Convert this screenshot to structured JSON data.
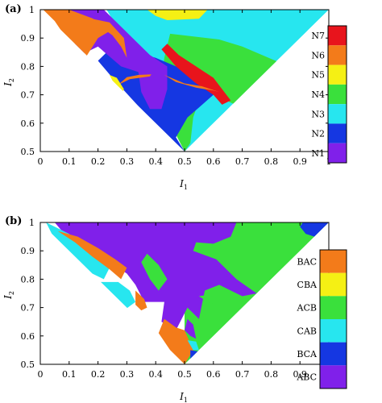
{
  "chart_data": [
    {
      "type": "heatmap",
      "panel_label": "(a)",
      "xlabel": "I",
      "xlabel_sub": "1",
      "ylabel": "I",
      "ylabel_sub": "2",
      "xlim": [
        0,
        1
      ],
      "ylim": [
        0.5,
        1
      ],
      "xticks": [
        0,
        0.1,
        0.2,
        0.3,
        0.4,
        0.5,
        0.6,
        0.7,
        0.8,
        0.9,
        1
      ],
      "yticks": [
        0.5,
        0.6,
        0.7,
        0.8,
        0.9,
        1
      ],
      "legend_position": "right",
      "legend": [
        {
          "label": "N7",
          "color": "#e8141c"
        },
        {
          "label": "N6",
          "color": "#f37b1a"
        },
        {
          "label": "N5",
          "color": "#f5f014"
        },
        {
          "label": "N4",
          "color": "#3ae03c"
        },
        {
          "label": "N3",
          "color": "#27e6ef"
        },
        {
          "label": "N2",
          "color": "#1537e2"
        },
        {
          "label": "N1",
          "color": "#8020ea"
        }
      ],
      "regions": [
        {
          "class": "N3",
          "points": [
            [
              0.23,
              1
            ],
            [
              1,
              1
            ],
            [
              0.5,
              0.5
            ],
            [
              0.46,
              0.61
            ]
          ]
        },
        {
          "class": "N5",
          "points": [
            [
              0.37,
              1
            ],
            [
              0.58,
              1
            ],
            [
              0.55,
              0.968
            ],
            [
              0.44,
              0.963
            ],
            [
              0.4,
              0.978
            ]
          ]
        },
        {
          "class": "N4",
          "points": [
            [
              0.45,
              0.915
            ],
            [
              0.62,
              0.895
            ],
            [
              0.7,
              0.87
            ],
            [
              0.82,
              0.818
            ],
            [
              0.67,
              0.668
            ],
            [
              0.6,
              0.7
            ],
            [
              0.55,
              0.68
            ],
            [
              0.53,
              0.62
            ],
            [
              0.52,
              0.53
            ],
            [
              0.5,
              0.5
            ],
            [
              0.44,
              0.62
            ],
            [
              0.42,
              0.75
            ],
            [
              0.43,
              0.83
            ]
          ]
        },
        {
          "class": "N2",
          "points": [
            [
              0.33,
              0.85
            ],
            [
              0.4,
              0.83
            ],
            [
              0.47,
              0.8
            ],
            [
              0.56,
              0.74
            ],
            [
              0.6,
              0.7
            ],
            [
              0.55,
              0.655
            ],
            [
              0.51,
              0.62
            ],
            [
              0.47,
              0.55
            ],
            [
              0.5,
              0.5
            ],
            [
              0.34,
              0.66
            ],
            [
              0.25,
              0.76
            ],
            [
              0.2,
              0.82
            ],
            [
              0.24,
              0.86
            ]
          ]
        },
        {
          "class": "N1",
          "points": [
            [
              0.07,
              1
            ],
            [
              0.22,
              1
            ],
            [
              0.27,
              0.95
            ],
            [
              0.32,
              0.9
            ],
            [
              0.38,
              0.84
            ],
            [
              0.44,
              0.8
            ],
            [
              0.44,
              0.72
            ],
            [
              0.42,
              0.65
            ],
            [
              0.38,
              0.65
            ],
            [
              0.35,
              0.71
            ],
            [
              0.34,
              0.78
            ],
            [
              0.28,
              0.8
            ],
            [
              0.2,
              0.87
            ],
            [
              0.14,
              0.84
            ],
            [
              0.11,
              0.9
            ],
            [
              0.08,
              0.96
            ]
          ]
        },
        {
          "class": "N6",
          "points": [
            [
              0.01,
              1
            ],
            [
              0.1,
              1
            ],
            [
              0.18,
              0.97
            ],
            [
              0.25,
              0.93
            ],
            [
              0.2,
              0.9
            ],
            [
              0.15,
              0.82
            ],
            [
              0.12,
              0.85
            ],
            [
              0.09,
              0.9
            ],
            [
              0.05,
              0.96
            ]
          ]
        },
        {
          "class": "N6",
          "points": [
            [
              0.12,
              0.98
            ],
            [
              0.24,
              0.955
            ],
            [
              0.29,
              0.9
            ],
            [
              0.3,
              0.83
            ],
            [
              0.28,
              0.87
            ],
            [
              0.25,
              0.91
            ],
            [
              0.18,
              0.96
            ]
          ]
        },
        {
          "class": "N7",
          "points": [
            [
              0.44,
              0.88
            ],
            [
              0.48,
              0.84
            ],
            [
              0.54,
              0.8
            ],
            [
              0.6,
              0.76
            ],
            [
              0.66,
              0.68
            ],
            [
              0.63,
              0.665
            ],
            [
              0.6,
              0.7
            ],
            [
              0.54,
              0.74
            ],
            [
              0.47,
              0.8
            ],
            [
              0.42,
              0.86
            ]
          ]
        },
        {
          "class": "N6",
          "points": [
            [
              0.43,
              0.77
            ],
            [
              0.5,
              0.74
            ],
            [
              0.56,
              0.73
            ],
            [
              0.62,
              0.71
            ],
            [
              0.6,
              0.715
            ],
            [
              0.54,
              0.725
            ],
            [
              0.47,
              0.745
            ]
          ]
        },
        {
          "class": "N6",
          "points": [
            [
              0.27,
              0.735
            ],
            [
              0.31,
              0.755
            ],
            [
              0.38,
              0.765
            ],
            [
              0.385,
              0.772
            ],
            [
              0.34,
              0.77
            ],
            [
              0.3,
              0.762
            ]
          ]
        },
        {
          "class": "N5",
          "points": [
            [
              0.24,
              0.77
            ],
            [
              0.265,
              0.76
            ],
            [
              0.29,
              0.72
            ],
            [
              0.28,
              0.7
            ],
            [
              0.26,
              0.73
            ]
          ]
        },
        {
          "class": "N1",
          "points": [
            [
              0.39,
              0.8
            ],
            [
              0.42,
              0.79
            ],
            [
              0.43,
              0.74
            ],
            [
              0.41,
              0.72
            ],
            [
              0.4,
              0.76
            ]
          ]
        }
      ]
    },
    {
      "type": "heatmap",
      "panel_label": "(b)",
      "xlabel": "I",
      "xlabel_sub": "1",
      "ylabel": "I",
      "ylabel_sub": "2",
      "xlim": [
        0,
        1
      ],
      "ylim": [
        0.5,
        1
      ],
      "xticks": [
        0,
        0.1,
        0.2,
        0.3,
        0.4,
        0.5,
        0.6,
        0.7,
        0.8,
        0.9,
        1
      ],
      "yticks": [
        0.5,
        0.6,
        0.7,
        0.8,
        0.9,
        1
      ],
      "legend_position": "right",
      "legend": [
        {
          "label": "BAC",
          "color": "#f37b1a"
        },
        {
          "label": "CBA",
          "color": "#f5f014"
        },
        {
          "label": "ACB",
          "color": "#3ae03c"
        },
        {
          "label": "CAB",
          "color": "#27e6ef"
        },
        {
          "label": "BCA",
          "color": "#1537e2"
        },
        {
          "label": "ABC",
          "color": "#8020ea"
        }
      ],
      "regions": [
        {
          "class": "ACB",
          "points": [
            [
              0.5,
              1
            ],
            [
              1,
              1
            ],
            [
              0.5,
              0.5
            ],
            [
              0.5,
              0.62
            ]
          ]
        },
        {
          "class": "BCA",
          "points": [
            [
              0.91,
              1
            ],
            [
              1,
              1
            ],
            [
              0.95,
              0.95
            ],
            [
              0.92,
              0.96
            ],
            [
              0.9,
              0.985
            ]
          ]
        },
        {
          "class": "ABC",
          "points": [
            [
              0.05,
              1
            ],
            [
              0.68,
              1
            ],
            [
              0.66,
              0.95
            ],
            [
              0.6,
              0.925
            ],
            [
              0.54,
              0.93
            ],
            [
              0.53,
              0.9
            ],
            [
              0.61,
              0.87
            ],
            [
              0.68,
              0.8
            ],
            [
              0.75,
              0.75
            ],
            [
              0.7,
              0.74
            ],
            [
              0.62,
              0.78
            ],
            [
              0.57,
              0.76
            ],
            [
              0.55,
              0.66
            ],
            [
              0.51,
              0.7
            ],
            [
              0.47,
              0.62
            ],
            [
              0.42,
              0.65
            ],
            [
              0.43,
              0.72
            ],
            [
              0.36,
              0.72
            ],
            [
              0.33,
              0.78
            ],
            [
              0.3,
              0.82
            ],
            [
              0.24,
              0.86
            ],
            [
              0.16,
              0.9
            ],
            [
              0.1,
              0.94
            ]
          ]
        },
        {
          "class": "CAB",
          "points": [
            [
              0.02,
              1
            ],
            [
              0.1,
              0.96
            ],
            [
              0.14,
              0.92
            ],
            [
              0.2,
              0.88
            ],
            [
              0.24,
              0.84
            ],
            [
              0.22,
              0.8
            ],
            [
              0.18,
              0.82
            ],
            [
              0.14,
              0.86
            ],
            [
              0.08,
              0.92
            ],
            [
              0.04,
              0.96
            ]
          ]
        },
        {
          "class": "BAC",
          "points": [
            [
              0.06,
              0.97
            ],
            [
              0.12,
              0.93
            ],
            [
              0.18,
              0.88
            ],
            [
              0.24,
              0.835
            ],
            [
              0.28,
              0.8
            ],
            [
              0.3,
              0.84
            ],
            [
              0.26,
              0.87
            ],
            [
              0.2,
              0.91
            ],
            [
              0.13,
              0.95
            ]
          ]
        },
        {
          "class": "CAB",
          "points": [
            [
              0.2,
              0.79
            ],
            [
              0.25,
              0.72
            ],
            [
              0.29,
              0.69
            ],
            [
              0.33,
              0.72
            ],
            [
              0.31,
              0.76
            ],
            [
              0.27,
              0.79
            ]
          ]
        },
        {
          "class": "BAC",
          "points": [
            [
              0.33,
              0.76
            ],
            [
              0.36,
              0.73
            ],
            [
              0.37,
              0.7
            ],
            [
              0.35,
              0.69
            ],
            [
              0.33,
              0.71
            ]
          ]
        },
        {
          "class": "BAC",
          "points": [
            [
              0.43,
              0.66
            ],
            [
              0.47,
              0.63
            ],
            [
              0.5,
              0.62
            ],
            [
              0.53,
              0.55
            ],
            [
              0.5,
              0.5
            ],
            [
              0.45,
              0.55
            ],
            [
              0.41,
              0.61
            ]
          ]
        },
        {
          "class": "CAB",
          "points": [
            [
              0.51,
              0.585
            ],
            [
              0.54,
              0.58
            ],
            [
              0.55,
              0.55
            ],
            [
              0.53,
              0.55
            ]
          ]
        },
        {
          "class": "BCA",
          "points": [
            [
              0.52,
              0.55
            ],
            [
              0.55,
              0.545
            ],
            [
              0.535,
              0.525
            ],
            [
              0.52,
              0.52
            ]
          ]
        },
        {
          "class": "ACB",
          "points": [
            [
              0.35,
              0.86
            ],
            [
              0.38,
              0.8
            ],
            [
              0.41,
              0.76
            ],
            [
              0.44,
              0.8
            ],
            [
              0.41,
              0.85
            ],
            [
              0.37,
              0.89
            ]
          ]
        },
        {
          "class": "ACB",
          "points": [
            [
              0.55,
              0.74
            ],
            [
              0.58,
              0.72
            ],
            [
              0.61,
              0.71
            ],
            [
              0.62,
              0.73
            ],
            [
              0.58,
              0.745
            ]
          ]
        },
        {
          "class": "ABC",
          "points": [
            [
              0.5,
              0.62
            ],
            [
              0.52,
              0.6
            ],
            [
              0.54,
              0.59
            ],
            [
              0.53,
              0.64
            ],
            [
              0.51,
              0.66
            ]
          ]
        }
      ]
    }
  ]
}
